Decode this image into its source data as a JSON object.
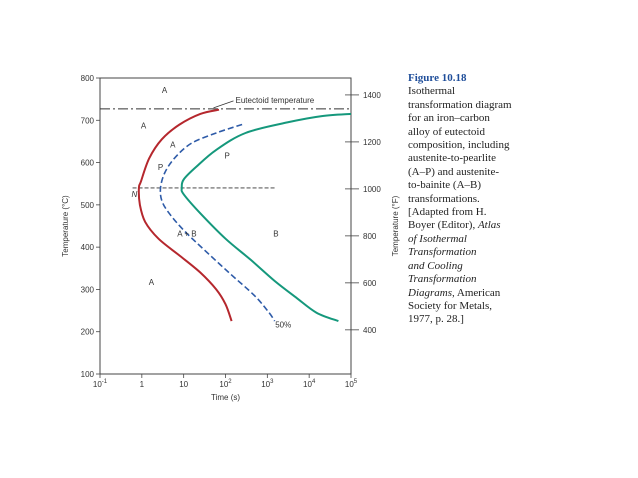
{
  "chart_data": {
    "type": "line",
    "x_scale": "log",
    "xlabel": "Time (s)",
    "ylabel": "Temperature (°C)",
    "ylabel_right": "Temperature (°F)",
    "xlim": [
      0.1,
      100000
    ],
    "ylim": [
      100,
      800
    ],
    "x_ticks": [
      {
        "value": 0.1,
        "label": "10",
        "sup": "-1"
      },
      {
        "value": 1,
        "label": "1",
        "sup": ""
      },
      {
        "value": 10,
        "label": "10",
        "sup": ""
      },
      {
        "value": 100,
        "label": "10",
        "sup": "2"
      },
      {
        "value": 1000,
        "label": "10",
        "sup": "3"
      },
      {
        "value": 10000,
        "label": "10",
        "sup": "4"
      },
      {
        "value": 100000,
        "label": "10",
        "sup": "5"
      }
    ],
    "y_ticks": [
      100,
      200,
      300,
      400,
      500,
      600,
      700,
      800
    ],
    "y_ticks_right": [
      400,
      600,
      800,
      1000,
      1200,
      1400
    ],
    "eutectoid": {
      "label": "Eutectoid temperature",
      "temperature": 727
    },
    "N_line": {
      "label": "N",
      "temperature": 540,
      "x_start": 0.6,
      "x_end": 1500
    },
    "series": [
      {
        "style": "start",
        "color": "#b5272d",
        "points": [
          [
            70,
            725
          ],
          [
            25,
            715
          ],
          [
            8,
            690
          ],
          [
            3,
            655
          ],
          [
            1.5,
            610
          ],
          [
            0.95,
            555
          ],
          [
            0.85,
            540
          ],
          [
            0.9,
            500
          ],
          [
            1.2,
            460
          ],
          [
            2.5,
            420
          ],
          [
            8,
            380
          ],
          [
            25,
            340
          ],
          [
            60,
            300
          ],
          [
            100,
            265
          ],
          [
            140,
            225
          ]
        ]
      },
      {
        "style": "completion",
        "color": "#15987c",
        "points": [
          [
            100000,
            715
          ],
          [
            20000,
            710
          ],
          [
            3000,
            695
          ],
          [
            300,
            670
          ],
          [
            60,
            630
          ],
          [
            20,
            590
          ],
          [
            10,
            560
          ],
          [
            9,
            540
          ],
          [
            10,
            525
          ],
          [
            25,
            480
          ],
          [
            100,
            420
          ],
          [
            400,
            370
          ],
          [
            1500,
            320
          ],
          [
            5000,
            280
          ],
          [
            15000,
            245
          ],
          [
            50000,
            225
          ]
        ]
      },
      {
        "style": "50% dashed",
        "color": "#2e5ba8",
        "points": [
          [
            250,
            690
          ],
          [
            60,
            670
          ],
          [
            15,
            645
          ],
          [
            6,
            610
          ],
          [
            3.5,
            575
          ],
          [
            2.8,
            540
          ],
          [
            3,
            510
          ],
          [
            4.5,
            480
          ],
          [
            10,
            440
          ],
          [
            30,
            395
          ],
          [
            120,
            340
          ],
          [
            500,
            285
          ],
          [
            1100,
            245
          ],
          [
            1500,
            225
          ]
        ]
      }
    ],
    "region_labels": [
      {
        "text": "A",
        "x": 3.5,
        "y": 765
      },
      {
        "text": "A",
        "x": 1.1,
        "y": 680
      },
      {
        "text": "A",
        "x": 1.7,
        "y": 310
      },
      {
        "text": "P",
        "x": 110,
        "y": 610
      },
      {
        "text": "A",
        "x": 5.5,
        "y": 636
      },
      {
        "text": "P",
        "x": 2.8,
        "y": 583
      },
      {
        "text": "A + B",
        "x": 12,
        "y": 425
      },
      {
        "text": "B",
        "x": 1600,
        "y": 425
      },
      {
        "text": "50%",
        "x": 2400,
        "y": 210
      }
    ]
  },
  "caption": {
    "figure_label": "Figure 10.18",
    "lines": [
      {
        "text": "Isothermal",
        "italic": false
      },
      {
        "text": "transformation diagram",
        "italic": false
      },
      {
        "text": "for an iron–carbon",
        "italic": false
      },
      {
        "text": "alloy of eutectoid",
        "italic": false
      },
      {
        "text": "composition, including",
        "italic": false
      },
      {
        "text": "austenite-to-pearlite",
        "italic": false
      },
      {
        "text": "(A–P) and austenite-",
        "italic": false
      },
      {
        "text": "to-bainite (A–B)",
        "italic": false
      },
      {
        "text": "transformations.",
        "italic": false
      },
      {
        "text": "[Adapted from H.",
        "italic": false
      },
      {
        "text": "Boyer (Editor), Atlas",
        "italic": false,
        "italic_tail": "Atlas"
      },
      {
        "text": "of Isothermal",
        "italic": true
      },
      {
        "text": "Transformation",
        "italic": true
      },
      {
        "text": "and Cooling",
        "italic": true
      },
      {
        "text": "Transformation",
        "italic": true
      },
      {
        "text": "Diagrams, American",
        "italic": false,
        "italic_head": "Diagrams,"
      },
      {
        "text": "Society for Metals,",
        "italic": false
      },
      {
        "text": "1977, p. 28.]",
        "italic": false
      }
    ]
  }
}
